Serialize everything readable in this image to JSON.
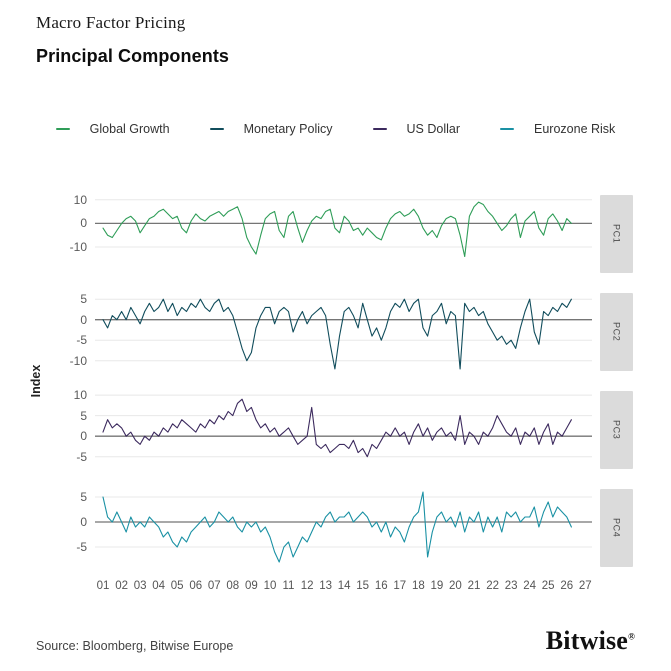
{
  "header": {
    "eyebrow": "Macro Factor Pricing",
    "title": "Principal Components"
  },
  "legend": {
    "items": [
      {
        "label": "Global Growth",
        "color": "#2f9d58"
      },
      {
        "label": "Monetary Policy",
        "color": "#114d5c"
      },
      {
        "label": "US Dollar",
        "color": "#3c2a5e"
      },
      {
        "label": "Eurozone Risk",
        "color": "#1a91a4"
      }
    ]
  },
  "style": {
    "zero_line": "#757575",
    "gridline": "#e8e8e8",
    "strip_bg": "#dbdbdb"
  },
  "chart_data": {
    "type": "line",
    "title": "Principal Components",
    "subtitle_eyebrow": "Macro Factor Pricing",
    "ylabel": "Index",
    "grid": true,
    "legend_position": "top",
    "x_start_year": 2001,
    "x_step_years": 0.25,
    "x_tick_labels": [
      "01",
      "02",
      "03",
      "04",
      "05",
      "06",
      "07",
      "08",
      "09",
      "10",
      "11",
      "12",
      "13",
      "14",
      "15",
      "16",
      "17",
      "18",
      "19",
      "20",
      "21",
      "22",
      "23",
      "24",
      "25",
      "26",
      "27"
    ],
    "panels": [
      {
        "facet_label": "PC1",
        "series": "Global Growth",
        "color": "#2f9d58",
        "ticks": [
          10,
          0,
          -10
        ],
        "ylim": [
          -21,
          12
        ],
        "values": [
          -2,
          -5,
          -6,
          -3,
          0,
          2,
          3,
          1,
          -4,
          -1,
          2,
          3,
          5,
          6,
          4,
          2,
          3,
          -2,
          -4,
          1,
          4,
          2,
          1,
          3,
          4,
          5,
          3,
          5,
          6,
          7,
          2,
          -6,
          -10,
          -13,
          -5,
          2,
          4,
          5,
          -3,
          -6,
          3,
          5,
          -2,
          -8,
          -3,
          1,
          3,
          2,
          5,
          6,
          -2,
          -4,
          3,
          1,
          -3,
          -2,
          -5,
          -2,
          -4,
          -6,
          -7,
          -2,
          2,
          4,
          5,
          3,
          4,
          6,
          3,
          -2,
          -5,
          -3,
          -6,
          -1,
          2,
          3,
          2,
          -5,
          -14,
          3,
          7,
          9,
          8,
          5,
          3,
          0,
          -3,
          -1,
          2,
          4,
          -6,
          1,
          3,
          5,
          -2,
          -5,
          2,
          4,
          1,
          -3,
          2,
          0
        ]
      },
      {
        "facet_label": "PC2",
        "series": "Monetary Policy",
        "color": "#114d5c",
        "ticks": [
          5,
          0,
          -5,
          -10
        ],
        "ylim": [
          -12.5,
          6.5
        ],
        "values": [
          0,
          -2,
          1,
          0,
          2,
          0,
          3,
          1,
          -1,
          2,
          4,
          2,
          3,
          5,
          2,
          4,
          1,
          3,
          2,
          4,
          3,
          5,
          3,
          2,
          4,
          5,
          2,
          3,
          1,
          -3,
          -7,
          -10,
          -8,
          -2,
          1,
          3,
          3,
          -1,
          2,
          3,
          2,
          -3,
          0,
          2,
          -1,
          1,
          2,
          3,
          1,
          -6,
          -12,
          -4,
          2,
          3,
          1,
          -2,
          4,
          0,
          -4,
          -2,
          -5,
          -2,
          2,
          4,
          3,
          5,
          2,
          4,
          5,
          -2,
          -4,
          1,
          2,
          4,
          -1,
          2,
          1,
          -12,
          4,
          2,
          3,
          1,
          2,
          -1,
          -3,
          -5,
          -4,
          -6,
          -5,
          -7,
          -2,
          2,
          5,
          -3,
          -6,
          2,
          1,
          3,
          2,
          4,
          3,
          5
        ]
      },
      {
        "facet_label": "PC3",
        "series": "US Dollar",
        "color": "#3c2a5e",
        "ticks": [
          10,
          5,
          0,
          -5
        ],
        "ylim": [
          -8,
          11
        ],
        "values": [
          1,
          4,
          2,
          3,
          2,
          0,
          1,
          -1,
          -2,
          0,
          -1,
          1,
          0,
          2,
          1,
          3,
          2,
          4,
          3,
          2,
          1,
          3,
          2,
          4,
          3,
          5,
          4,
          6,
          5,
          8,
          9,
          6,
          7,
          4,
          2,
          3,
          1,
          2,
          0,
          1,
          2,
          0,
          -2,
          -1,
          0,
          7,
          -2,
          -3,
          -2,
          -4,
          -3,
          -2,
          -2,
          -3,
          -1,
          -4,
          -3,
          -5,
          -2,
          -3,
          -1,
          1,
          0,
          2,
          0,
          1,
          -2,
          1,
          3,
          0,
          2,
          -1,
          1,
          2,
          0,
          1,
          -1,
          5,
          -2,
          1,
          0,
          -2,
          1,
          0,
          2,
          5,
          3,
          1,
          0,
          2,
          -2,
          1,
          0,
          2,
          -2,
          1,
          3,
          -2,
          1,
          0,
          2,
          4
        ]
      },
      {
        "facet_label": "PC4",
        "series": "Eurozone Risk",
        "color": "#1a91a4",
        "ticks": [
          5,
          0,
          -5
        ],
        "ylim": [
          -9,
          6.6
        ],
        "values": [
          5,
          1,
          0,
          2,
          0,
          -2,
          1,
          -1,
          0,
          -1,
          1,
          0,
          -1,
          -3,
          -2,
          -4,
          -5,
          -3,
          -4,
          -2,
          -1,
          0,
          1,
          -1,
          0,
          2,
          1,
          0,
          1,
          -1,
          -2,
          0,
          -1,
          0,
          -2,
          -1,
          -3,
          -6,
          -8,
          -5,
          -4,
          -7,
          -5,
          -3,
          -4,
          -2,
          0,
          -1,
          1,
          2,
          0,
          1,
          1,
          2,
          0,
          1,
          2,
          1,
          -1,
          0,
          -2,
          0,
          -3,
          -1,
          -2,
          -4,
          -1,
          1,
          2,
          6,
          -7,
          -2,
          1,
          2,
          0,
          1,
          -1,
          2,
          -2,
          1,
          0,
          2,
          -2,
          1,
          -1,
          1,
          -2,
          2,
          1,
          2,
          0,
          1,
          1,
          3,
          -1,
          2,
          4,
          1,
          3,
          2,
          1,
          -1
        ]
      }
    ]
  },
  "y_axis_label": "Index",
  "footer": {
    "source": "Source: Bloomberg, Bitwise Europe",
    "logo": "Bitwise",
    "reg": "®"
  }
}
